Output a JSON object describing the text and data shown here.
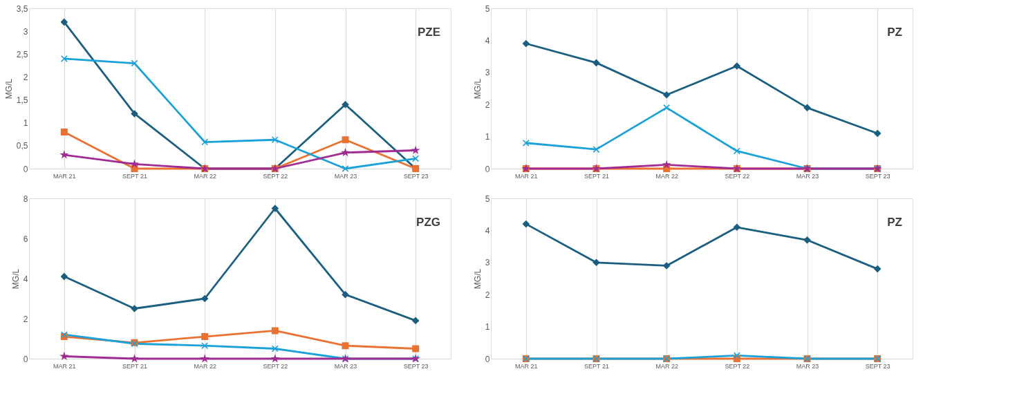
{
  "chart_data": [
    {
      "type": "line",
      "title": "PZE",
      "ylabel": "MG/L",
      "categories": [
        "MAR 21",
        "SEPT 21",
        "MAR 22",
        "SEPT 22",
        "MAR 23",
        "SEPT 23"
      ],
      "ylim": [
        0,
        3.5
      ],
      "yticks": [
        0,
        {
          "value": 0.5,
          "label": "0,5"
        },
        1,
        {
          "value": 1.5,
          "label": "1,5"
        },
        2,
        {
          "value": 2.5,
          "label": "2,5"
        },
        3,
        {
          "value": 3.5,
          "label": "3,5"
        }
      ],
      "grid": "x",
      "line_style": "solid",
      "series": [
        {
          "color": "#1a5e80",
          "marker": "diamond",
          "values": [
            3.2,
            1.2,
            0,
            0,
            1.4,
            0
          ]
        },
        {
          "color": "#e97132",
          "marker": "square",
          "values": [
            0.8,
            0,
            0,
            0,
            0.63,
            0
          ]
        },
        {
          "color": "#1aa1d8",
          "marker": "cross",
          "values": [
            2.4,
            2.3,
            0.58,
            0.63,
            0,
            0.22
          ]
        },
        {
          "color": "#a02b93",
          "marker": "star",
          "values": [
            0.3,
            0.1,
            0,
            0,
            0.35,
            0.4
          ]
        }
      ]
    },
    {
      "type": "line",
      "title": "PZ",
      "ylabel": "MG/L",
      "categories": [
        "MAR 21",
        "SEPT 21",
        "MAR 22",
        "SEPT 22",
        "MAR 23",
        "SEPT 23"
      ],
      "ylim": [
        0,
        5
      ],
      "yticks": [
        0,
        1,
        2,
        3,
        4,
        5
      ],
      "grid": "x",
      "line_style": "solid",
      "series": [
        {
          "color": "#1a5e80",
          "marker": "diamond",
          "values": [
            3.9,
            3.3,
            2.3,
            3.2,
            1.9,
            1.1
          ]
        },
        {
          "color": "#e97132",
          "marker": "square",
          "values": [
            0,
            0,
            0,
            0,
            0,
            0
          ]
        },
        {
          "color": "#1aa1d8",
          "marker": "cross",
          "values": [
            0.8,
            0.6,
            1.9,
            0.55,
            0,
            0
          ]
        },
        {
          "color": "#a02b93",
          "marker": "star",
          "values": [
            0,
            0,
            0.12,
            0,
            0,
            0
          ]
        }
      ]
    },
    {
      "type": "line",
      "title": "PZG",
      "ylabel": "MG/L",
      "categories": [
        "MAR 21",
        "SEPT 21",
        "MAR 22",
        "SEPT 22",
        "MAR 23",
        "SEPT 23"
      ],
      "ylim": [
        0,
        8
      ],
      "yticks": [
        0,
        2,
        4,
        6,
        8
      ],
      "grid": "x",
      "line_style": "solid",
      "series": [
        {
          "color": "#1a5e80",
          "marker": "diamond",
          "values": [
            4.1,
            2.5,
            3.0,
            7.5,
            3.2,
            1.9
          ]
        },
        {
          "color": "#e97132",
          "marker": "square",
          "values": [
            1.1,
            0.8,
            1.1,
            1.4,
            0.65,
            0.5
          ]
        },
        {
          "color": "#1aa1d8",
          "marker": "cross",
          "values": [
            1.2,
            0.75,
            0.65,
            0.5,
            0,
            0
          ]
        },
        {
          "color": "#a02b93",
          "marker": "star",
          "values": [
            0.12,
            0,
            0,
            0,
            0,
            0
          ]
        }
      ]
    },
    {
      "type": "line",
      "title": "PZ",
      "ylabel": "MG/L",
      "categories": [
        "MAR 21",
        "SEPT 21",
        "MAR 22",
        "SEPT 22",
        "MAR 23",
        "SEPT 23"
      ],
      "ylim": [
        0,
        5
      ],
      "yticks": [
        0,
        1,
        2,
        3,
        4,
        5
      ],
      "grid": "x",
      "line_style": "solid",
      "series": [
        {
          "color": "#1a5e80",
          "marker": "diamond",
          "values": [
            4.2,
            3.0,
            2.9,
            4.1,
            3.7,
            2.8
          ]
        },
        {
          "color": "#e97132",
          "marker": "square",
          "values": [
            0,
            0,
            0,
            0,
            0,
            0
          ]
        },
        {
          "color": "#1aa1d8",
          "marker": "cross",
          "values": [
            0,
            0,
            0,
            0.1,
            0,
            0
          ]
        }
      ]
    }
  ]
}
